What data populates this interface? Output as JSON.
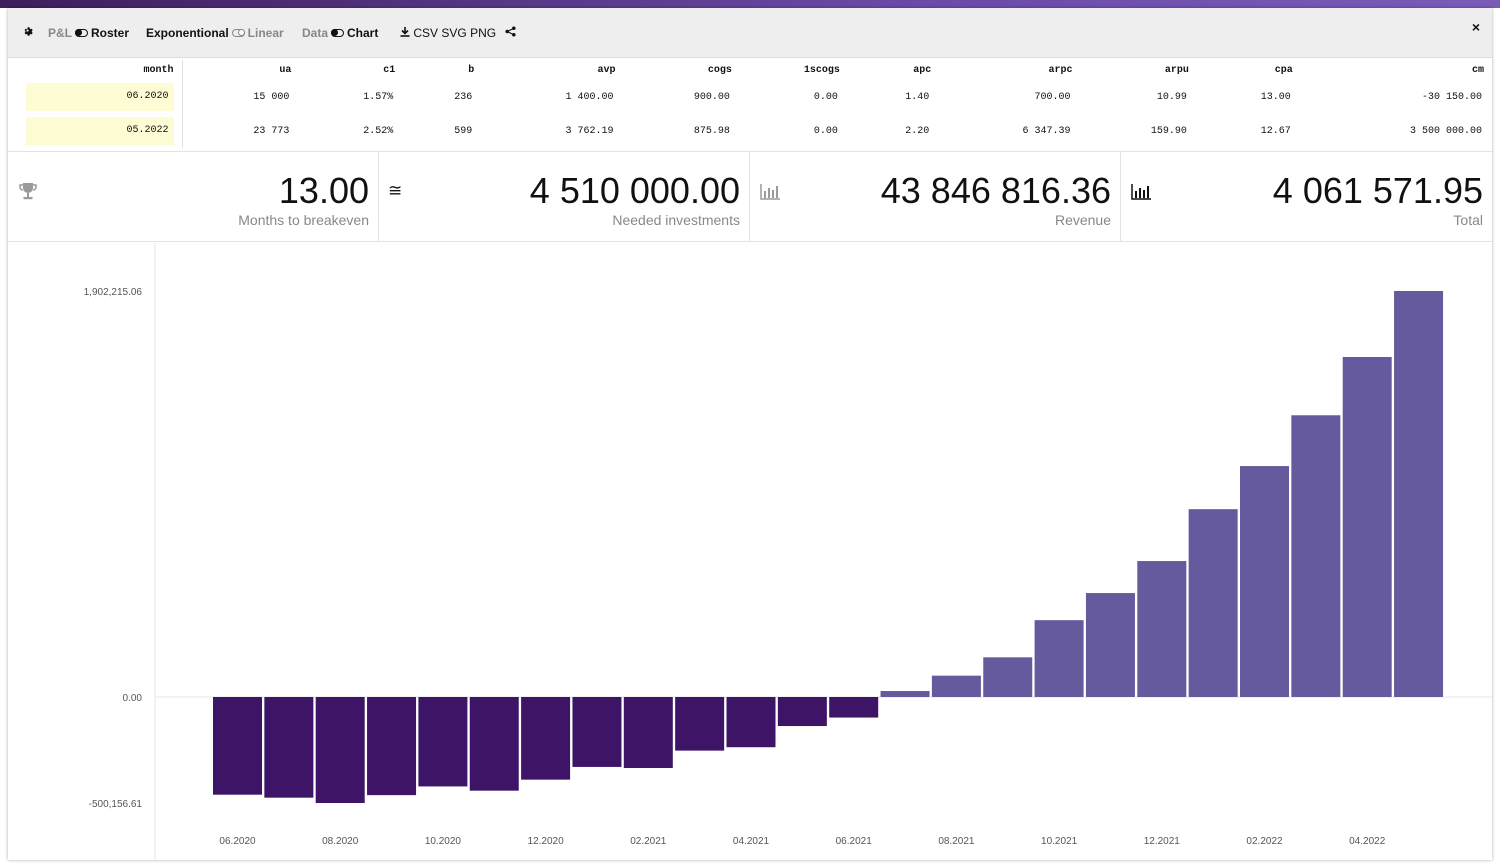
{
  "toolbar": {
    "settings_icon": "gear-icon",
    "pl_label": "P&L",
    "roster_label": "Roster",
    "exponential_label": "Exponentional",
    "linear_label": "Linear",
    "data_label": "Data",
    "chart_label": "Chart",
    "download_icon": "download-icon",
    "csv_label": "CSV",
    "svg_label": "SVG",
    "png_label": "PNG",
    "share_icon": "share-icon",
    "close_label": "×"
  },
  "table": {
    "columns": [
      "month",
      "ua",
      "c1",
      "b",
      "avp",
      "cogs",
      "1scogs",
      "apc",
      "arpc",
      "arpu",
      "cpa",
      "cm"
    ],
    "rows": [
      [
        "06.2020",
        "15 000",
        "1.57%",
        "236",
        "1 400.00",
        "900.00",
        "0.00",
        "1.40",
        "700.00",
        "10.99",
        "13.00",
        "-30 150.00"
      ],
      [
        "05.2022",
        "23 773",
        "2.52%",
        "599",
        "3 762.19",
        "875.98",
        "0.00",
        "2.20",
        "6 347.39",
        "159.90",
        "12.67",
        "3 500 000.00"
      ]
    ]
  },
  "kpis": [
    {
      "icon": "trophy-icon",
      "value": "13.00",
      "label": "Months to breakeven"
    },
    {
      "icon": "approx-icon",
      "value": "4 510 000.00",
      "label": "Needed investments"
    },
    {
      "icon": "bar-chart-icon",
      "value": "43 846 816.36",
      "label": "Revenue"
    },
    {
      "icon": "bar-chart-icon",
      "value": "4 061 571.95",
      "label": "Total"
    }
  ],
  "colors": {
    "negative_bar": "#3d1466",
    "positive_bar": "#665a9f"
  },
  "chart_data": {
    "type": "bar",
    "title": "",
    "xlabel": "",
    "ylabel": "",
    "ylim": [
      -500156.61,
      1902215.06
    ],
    "y_tick_labels": [
      "1,902,215.06",
      "0.00",
      "-500,156.61"
    ],
    "x_tick_labels": [
      "06.2020",
      "08.2020",
      "10.2020",
      "12.2020",
      "02.2021",
      "04.2021",
      "06.2021",
      "08.2021",
      "10.2021",
      "12.2021",
      "02.2022",
      "04.2022"
    ],
    "categories": [
      "06.2020",
      "07.2020",
      "08.2020",
      "09.2020",
      "10.2020",
      "11.2020",
      "12.2020",
      "01.2021",
      "02.2021",
      "03.2021",
      "04.2021",
      "05.2021",
      "06.2021",
      "07.2021",
      "08.2021",
      "09.2021",
      "10.2021",
      "11.2021",
      "12.2021",
      "01.2022",
      "02.2022",
      "03.2022",
      "04.2022",
      "05.2022"
    ],
    "values": [
      -461000,
      -475000,
      -500156.61,
      -463000,
      -422000,
      -442000,
      -390000,
      -330000,
      -335000,
      -253000,
      -237000,
      -137000,
      -97000,
      28000,
      100000,
      186000,
      360000,
      487000,
      637000,
      880000,
      1082000,
      1320000,
      1593000,
      1902215.06
    ]
  }
}
